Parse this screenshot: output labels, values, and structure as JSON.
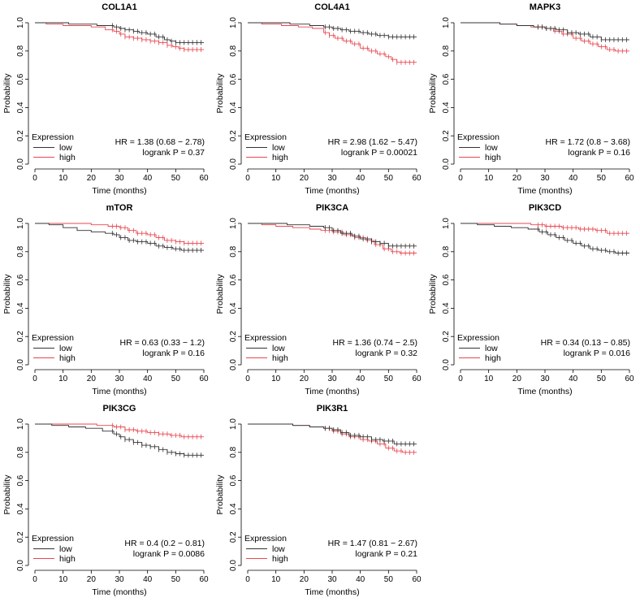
{
  "figure": {
    "axis_labels": {
      "x": "Time (months)",
      "y": "Probability"
    },
    "x_ticks": [
      "0",
      "10",
      "20",
      "30",
      "40",
      "50",
      "60"
    ],
    "y_ticks": [
      "0.0",
      "0.2",
      "0.4",
      "0.6",
      "0.8",
      "1.0"
    ],
    "legend": {
      "title": "Expression",
      "low": "low",
      "high": "high"
    },
    "colors": {
      "low": "#333333",
      "high": "#e8474f",
      "axis": "#000000"
    }
  },
  "chart_data": [
    {
      "type": "line",
      "title": "COL1A1",
      "xlabel": "Time (months)",
      "ylabel": "Probability",
      "xlim": [
        0,
        60
      ],
      "ylim": [
        0,
        1
      ],
      "legend_position": "bottom-left",
      "hr_text": "HR = 1.38 (0.68 − 2.78)",
      "logrank_text": "logrank P = 0.37",
      "series": [
        {
          "name": "low",
          "x": [
            0,
            4,
            12,
            22,
            28,
            30,
            32,
            35,
            37,
            40,
            43,
            46,
            48,
            50,
            60
          ],
          "y": [
            1.0,
            1.0,
            0.99,
            0.98,
            0.97,
            0.96,
            0.95,
            0.94,
            0.93,
            0.92,
            0.9,
            0.88,
            0.87,
            0.86,
            0.86
          ]
        },
        {
          "name": "high",
          "x": [
            0,
            4,
            10,
            20,
            25,
            28,
            30,
            32,
            35,
            38,
            41,
            44,
            47,
            49,
            51,
            53,
            60
          ],
          "y": [
            1.0,
            0.99,
            0.98,
            0.97,
            0.95,
            0.94,
            0.92,
            0.9,
            0.89,
            0.88,
            0.87,
            0.86,
            0.84,
            0.83,
            0.82,
            0.81,
            0.81
          ]
        }
      ]
    },
    {
      "type": "line",
      "title": "COL4A1",
      "xlabel": "Time (months)",
      "ylabel": "Probability",
      "xlim": [
        0,
        60
      ],
      "ylim": [
        0,
        1
      ],
      "legend_position": "bottom-left",
      "hr_text": "HR = 2.98 (1.62 − 5.47)",
      "logrank_text": "logrank P = 0.00021",
      "series": [
        {
          "name": "low",
          "x": [
            0,
            6,
            15,
            22,
            27,
            30,
            33,
            36,
            40,
            43,
            46,
            50,
            60
          ],
          "y": [
            1.0,
            1.0,
            0.99,
            0.98,
            0.97,
            0.96,
            0.95,
            0.94,
            0.93,
            0.92,
            0.91,
            0.9,
            0.9
          ]
        },
        {
          "name": "high",
          "x": [
            0,
            5,
            12,
            18,
            23,
            27,
            29,
            31,
            34,
            37,
            40,
            43,
            46,
            49,
            51,
            53,
            60
          ],
          "y": [
            1.0,
            0.99,
            0.98,
            0.97,
            0.96,
            0.93,
            0.91,
            0.89,
            0.87,
            0.85,
            0.82,
            0.8,
            0.78,
            0.76,
            0.74,
            0.72,
            0.72
          ]
        }
      ]
    },
    {
      "type": "line",
      "title": "MAPK3",
      "xlabel": "Time (months)",
      "ylabel": "Probability",
      "xlim": [
        0,
        60
      ],
      "ylim": [
        0,
        1
      ],
      "legend_position": "bottom-left",
      "hr_text": "HR = 1.72 (0.8 − 3.68)",
      "logrank_text": "logrank P = 0.16",
      "series": [
        {
          "name": "low",
          "x": [
            0,
            6,
            14,
            20,
            26,
            30,
            34,
            38,
            42,
            46,
            50,
            60
          ],
          "y": [
            1.0,
            1.0,
            0.99,
            0.98,
            0.97,
            0.96,
            0.95,
            0.93,
            0.92,
            0.9,
            0.88,
            0.88
          ]
        },
        {
          "name": "high",
          "x": [
            0,
            6,
            14,
            20,
            25,
            30,
            33,
            36,
            40,
            43,
            46,
            49,
            52,
            55,
            60
          ],
          "y": [
            1.0,
            1.0,
            0.99,
            0.98,
            0.97,
            0.96,
            0.94,
            0.92,
            0.89,
            0.87,
            0.85,
            0.83,
            0.81,
            0.8,
            0.8
          ]
        }
      ]
    },
    {
      "type": "line",
      "title": "mTOR",
      "xlabel": "Time (months)",
      "ylabel": "Probability",
      "xlim": [
        0,
        60
      ],
      "ylim": [
        0,
        1
      ],
      "legend_position": "bottom-left",
      "hr_text": "HR = 0.63 (0.33 − 1.2)",
      "logrank_text": "logrank P = 0.16",
      "series": [
        {
          "name": "low",
          "x": [
            0,
            5,
            10,
            15,
            20,
            25,
            28,
            30,
            33,
            36,
            40,
            43,
            46,
            49,
            52,
            60
          ],
          "y": [
            1.0,
            0.99,
            0.97,
            0.95,
            0.94,
            0.93,
            0.92,
            0.9,
            0.88,
            0.87,
            0.86,
            0.84,
            0.83,
            0.82,
            0.81,
            0.81
          ]
        },
        {
          "name": "high",
          "x": [
            0,
            10,
            20,
            26,
            30,
            33,
            36,
            40,
            43,
            46,
            50,
            53,
            60
          ],
          "y": [
            1.0,
            1.0,
            0.99,
            0.98,
            0.97,
            0.95,
            0.93,
            0.92,
            0.9,
            0.88,
            0.87,
            0.86,
            0.86
          ]
        }
      ]
    },
    {
      "type": "line",
      "title": "PIK3CA",
      "xlabel": "Time (months)",
      "ylabel": "Probability",
      "xlim": [
        0,
        60
      ],
      "ylim": [
        0,
        1
      ],
      "legend_position": "bottom-left",
      "hr_text": "HR = 1.36 (0.74 − 2.5)",
      "logrank_text": "logrank P = 0.32",
      "series": [
        {
          "name": "low",
          "x": [
            0,
            6,
            14,
            22,
            27,
            30,
            33,
            37,
            40,
            44,
            47,
            50,
            60
          ],
          "y": [
            1.0,
            1.0,
            0.99,
            0.98,
            0.97,
            0.95,
            0.93,
            0.91,
            0.89,
            0.87,
            0.86,
            0.84,
            0.84
          ]
        },
        {
          "name": "high",
          "x": [
            0,
            5,
            10,
            16,
            22,
            26,
            30,
            34,
            38,
            42,
            45,
            48,
            51,
            54,
            60
          ],
          "y": [
            1.0,
            0.99,
            0.98,
            0.97,
            0.96,
            0.95,
            0.94,
            0.92,
            0.9,
            0.88,
            0.85,
            0.82,
            0.8,
            0.79,
            0.79
          ]
        }
      ]
    },
    {
      "type": "line",
      "title": "PIK3CD",
      "xlabel": "Time (months)",
      "ylabel": "Probability",
      "xlim": [
        0,
        60
      ],
      "ylim": [
        0,
        1
      ],
      "legend_position": "bottom-left",
      "hr_text": "HR = 0.34 (0.13 − 0.85)",
      "logrank_text": "logrank P = 0.016",
      "series": [
        {
          "name": "low",
          "x": [
            0,
            6,
            12,
            18,
            24,
            28,
            31,
            34,
            37,
            40,
            43,
            46,
            49,
            52,
            55,
            60
          ],
          "y": [
            1.0,
            0.99,
            0.98,
            0.97,
            0.96,
            0.94,
            0.92,
            0.9,
            0.88,
            0.86,
            0.84,
            0.82,
            0.81,
            0.8,
            0.79,
            0.79
          ]
        },
        {
          "name": "high",
          "x": [
            0,
            15,
            25,
            30,
            36,
            42,
            48,
            52,
            60
          ],
          "y": [
            1.0,
            1.0,
            0.99,
            0.98,
            0.97,
            0.96,
            0.95,
            0.93,
            0.93
          ]
        }
      ]
    },
    {
      "type": "line",
      "title": "PIK3CG",
      "xlabel": "Time (months)",
      "ylabel": "Probability",
      "xlim": [
        0,
        60
      ],
      "ylim": [
        0,
        1
      ],
      "legend_position": "bottom-left",
      "hr_text": "HR = 0.4 (0.2 − 0.81)",
      "logrank_text": "logrank P = 0.0086",
      "series": [
        {
          "name": "low",
          "x": [
            0,
            6,
            12,
            18,
            24,
            28,
            30,
            32,
            35,
            38,
            41,
            44,
            47,
            50,
            53,
            60
          ],
          "y": [
            1.0,
            0.99,
            0.98,
            0.97,
            0.95,
            0.93,
            0.91,
            0.89,
            0.87,
            0.85,
            0.84,
            0.82,
            0.8,
            0.79,
            0.78,
            0.78
          ]
        },
        {
          "name": "high",
          "x": [
            0,
            12,
            22,
            28,
            32,
            36,
            40,
            44,
            48,
            52,
            60
          ],
          "y": [
            1.0,
            1.0,
            0.99,
            0.98,
            0.96,
            0.95,
            0.94,
            0.93,
            0.92,
            0.91,
            0.91
          ]
        }
      ]
    },
    {
      "type": "line",
      "title": "PIK3R1",
      "xlabel": "Time (months)",
      "ylabel": "Probability",
      "xlim": [
        0,
        60
      ],
      "ylim": [
        0,
        1
      ],
      "legend_position": "bottom-left",
      "hr_text": "HR = 1.47 (0.81 − 2.67)",
      "logrank_text": "logrank P = 0.21",
      "series": [
        {
          "name": "low",
          "x": [
            0,
            8,
            16,
            22,
            27,
            30,
            33,
            36,
            40,
            44,
            48,
            52,
            60
          ],
          "y": [
            1.0,
            1.0,
            0.99,
            0.98,
            0.97,
            0.96,
            0.94,
            0.92,
            0.91,
            0.89,
            0.88,
            0.86,
            0.86
          ]
        },
        {
          "name": "high",
          "x": [
            0,
            8,
            16,
            22,
            27,
            30,
            33,
            36,
            40,
            43,
            46,
            49,
            52,
            55,
            60
          ],
          "y": [
            1.0,
            1.0,
            0.99,
            0.98,
            0.97,
            0.95,
            0.93,
            0.91,
            0.89,
            0.88,
            0.86,
            0.83,
            0.81,
            0.8,
            0.8
          ]
        }
      ]
    }
  ]
}
